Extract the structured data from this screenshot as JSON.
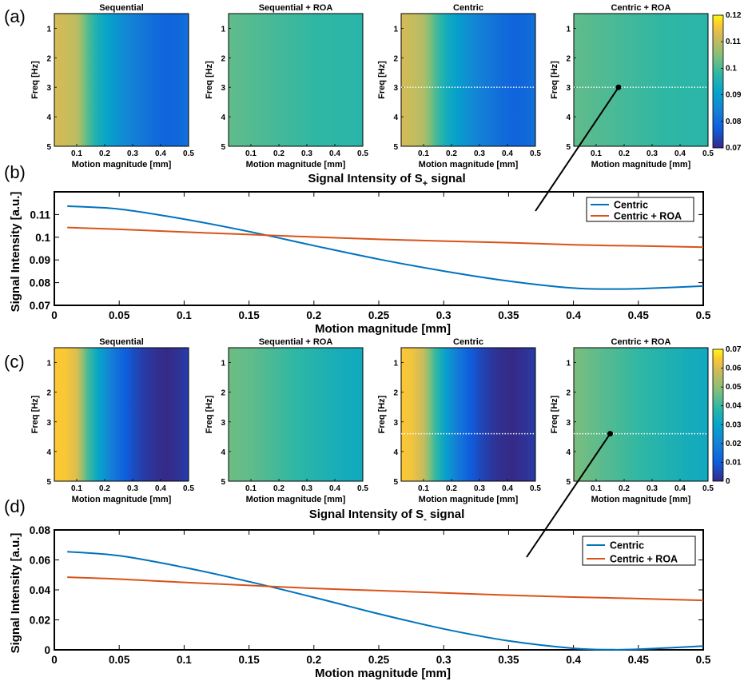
{
  "panels": {
    "a": "(a)",
    "b": "(b)",
    "c": "(c)",
    "d": "(d)"
  },
  "colors": {
    "centric": "#0072BD",
    "centric_roa": "#D95319"
  },
  "chart_data": [
    {
      "id": "a",
      "type": "heatmap",
      "title": "Sequential",
      "x": [
        0.02,
        0.5
      ],
      "y": [
        0.5,
        5
      ],
      "xlabel": "Motion magnitude [mm]",
      "ylabel": "Freq [Hz]",
      "xticks": [
        "0.1",
        "0.2",
        "0.3",
        "0.4",
        "0.5"
      ],
      "yticks": [
        "1",
        "2",
        "3",
        "4",
        "5"
      ],
      "clim": [
        0.07,
        0.12
      ],
      "marker": null
    },
    {
      "id": "a",
      "type": "heatmap",
      "title": "Sequential + ROA",
      "x": [
        0.02,
        0.5
      ],
      "y": [
        0.5,
        5
      ],
      "xlabel": "Motion magnitude [mm]",
      "ylabel": "Freq [Hz]",
      "xticks": [
        "0.1",
        "0.2",
        "0.3",
        "0.4",
        "0.5"
      ],
      "yticks": [
        "1",
        "2",
        "3",
        "4",
        "5"
      ],
      "clim": [
        0.07,
        0.12
      ],
      "marker": null
    },
    {
      "id": "a",
      "type": "heatmap",
      "title": "Centric",
      "x": [
        0.02,
        0.5
      ],
      "y": [
        0.5,
        5
      ],
      "xlabel": "Motion magnitude [mm]",
      "ylabel": "Freq [Hz]",
      "xticks": [
        "0.1",
        "0.2",
        "0.3",
        "0.4",
        "0.5"
      ],
      "yticks": [
        "1",
        "2",
        "3",
        "4",
        "5"
      ],
      "clim": [
        0.07,
        0.12
      ],
      "dotted_line_freq": 3,
      "marker": null
    },
    {
      "id": "a",
      "type": "heatmap",
      "title": "Centric + ROA",
      "x": [
        0.02,
        0.5
      ],
      "y": [
        0.5,
        5
      ],
      "xlabel": "Motion magnitude [mm]",
      "ylabel": "Freq [Hz]",
      "xticks": [
        "0.1",
        "0.2",
        "0.3",
        "0.4",
        "0.5"
      ],
      "yticks": [
        "1",
        "2",
        "3",
        "4",
        "5"
      ],
      "clim": [
        0.07,
        0.12
      ],
      "dotted_line_freq": 3,
      "marker": [
        0.18,
        3
      ],
      "colorbar_ticks": [
        "0.07",
        "0.08",
        "0.09",
        "0.1",
        "0.11",
        "0.12"
      ]
    },
    {
      "id": "b",
      "type": "line",
      "title": "Signal Intensity of S",
      "title_sub": "+",
      "title_suffix": " signal",
      "xlabel": "Motion magnitude [mm]",
      "ylabel": "Signal Intensity [a.u.]",
      "xlim": [
        0,
        0.5
      ],
      "ylim": [
        0.07,
        0.12
      ],
      "xticks": [
        "0",
        "0.05",
        "0.1",
        "0.15",
        "0.2",
        "0.25",
        "0.3",
        "0.35",
        "0.4",
        "0.45",
        "0.5"
      ],
      "yticks": [
        "0.07",
        "0.08",
        "0.09",
        "0.1",
        "0.11"
      ],
      "legend": "top-right",
      "x": [
        0.01,
        0.05,
        0.1,
        0.15,
        0.2,
        0.25,
        0.3,
        0.35,
        0.4,
        0.43,
        0.45,
        0.5
      ],
      "series": [
        {
          "name": "Centric",
          "values": [
            0.1137,
            0.1124,
            0.108,
            0.1025,
            0.0963,
            0.0903,
            0.0851,
            0.0807,
            0.0776,
            0.0772,
            0.0773,
            0.0785
          ]
        },
        {
          "name": "Centric + ROA",
          "values": [
            0.1043,
            0.1035,
            0.1023,
            0.1012,
            0.1001,
            0.0991,
            0.0983,
            0.0976,
            0.0967,
            0.0963,
            0.0962,
            0.0956
          ]
        }
      ]
    },
    {
      "id": "c",
      "type": "heatmap",
      "title": "Sequential",
      "x": [
        0.02,
        0.5
      ],
      "y": [
        0.5,
        5
      ],
      "xlabel": "Motion magnitude [mm]",
      "ylabel": "Freq [Hz]",
      "xticks": [
        "0.1",
        "0.2",
        "0.3",
        "0.4",
        "0.5"
      ],
      "yticks": [
        "1",
        "2",
        "3",
        "4",
        "5"
      ],
      "clim": [
        0,
        0.07
      ],
      "marker": null
    },
    {
      "id": "c",
      "type": "heatmap",
      "title": "Sequential + ROA",
      "x": [
        0.02,
        0.5
      ],
      "y": [
        0.5,
        5
      ],
      "xlabel": "Motion magnitude [mm]",
      "ylabel": "Freq [Hz]",
      "xticks": [
        "0.1",
        "0.2",
        "0.3",
        "0.4",
        "0.5"
      ],
      "yticks": [
        "1",
        "2",
        "3",
        "4",
        "5"
      ],
      "clim": [
        0,
        0.07
      ],
      "marker": null
    },
    {
      "id": "c",
      "type": "heatmap",
      "title": "Centric",
      "x": [
        0.02,
        0.5
      ],
      "y": [
        0.5,
        5
      ],
      "xlabel": "Motion magnitude [mm]",
      "ylabel": "Freq [Hz]",
      "xticks": [
        "0.1",
        "0.2",
        "0.3",
        "0.4",
        "0.5"
      ],
      "yticks": [
        "1",
        "2",
        "3",
        "4",
        "5"
      ],
      "clim": [
        0,
        0.07
      ],
      "dotted_line_freq": 3.4,
      "marker": null
    },
    {
      "id": "c",
      "type": "heatmap",
      "title": "Centric + ROA",
      "x": [
        0.02,
        0.5
      ],
      "y": [
        0.5,
        5
      ],
      "xlabel": "Motion magnitude [mm]",
      "ylabel": "Freq [Hz]",
      "xticks": [
        "0.1",
        "0.2",
        "0.3",
        "0.4",
        "0.5"
      ],
      "yticks": [
        "1",
        "2",
        "3",
        "4",
        "5"
      ],
      "clim": [
        0,
        0.07
      ],
      "dotted_line_freq": 3.4,
      "marker": [
        0.15,
        3.4
      ],
      "colorbar_ticks": [
        "0",
        "0.01",
        "0.02",
        "0.03",
        "0.04",
        "0.05",
        "0.06",
        "0.07"
      ]
    },
    {
      "id": "d",
      "type": "line",
      "title": "Signal Intensity of S",
      "title_sub": "-",
      "title_suffix": " signal",
      "xlabel": "Motion magnitude [mm]",
      "ylabel": "Signal Intensity [a.u.]",
      "xlim": [
        0,
        0.5
      ],
      "ylim": [
        0,
        0.08
      ],
      "xticks": [
        "0",
        "0.05",
        "0.1",
        "0.15",
        "0.2",
        "0.25",
        "0.3",
        "0.35",
        "0.4",
        "0.45",
        "0.5"
      ],
      "yticks": [
        "0",
        "0.02",
        "0.04",
        "0.06",
        "0.08"
      ],
      "legend": "top-right",
      "x": [
        0.01,
        0.05,
        0.1,
        0.15,
        0.2,
        0.25,
        0.3,
        0.35,
        0.4,
        0.43,
        0.45,
        0.5
      ],
      "series": [
        {
          "name": "Centric",
          "values": [
            0.0655,
            0.0628,
            0.055,
            0.0455,
            0.035,
            0.024,
            0.014,
            0.006,
            0.001,
            0.0001,
            0.0004,
            0.0025
          ]
        },
        {
          "name": "Centric + ROA",
          "values": [
            0.0485,
            0.0472,
            0.045,
            0.043,
            0.041,
            0.0395,
            0.038,
            0.0365,
            0.0352,
            0.0346,
            0.0342,
            0.033
          ]
        }
      ]
    }
  ]
}
